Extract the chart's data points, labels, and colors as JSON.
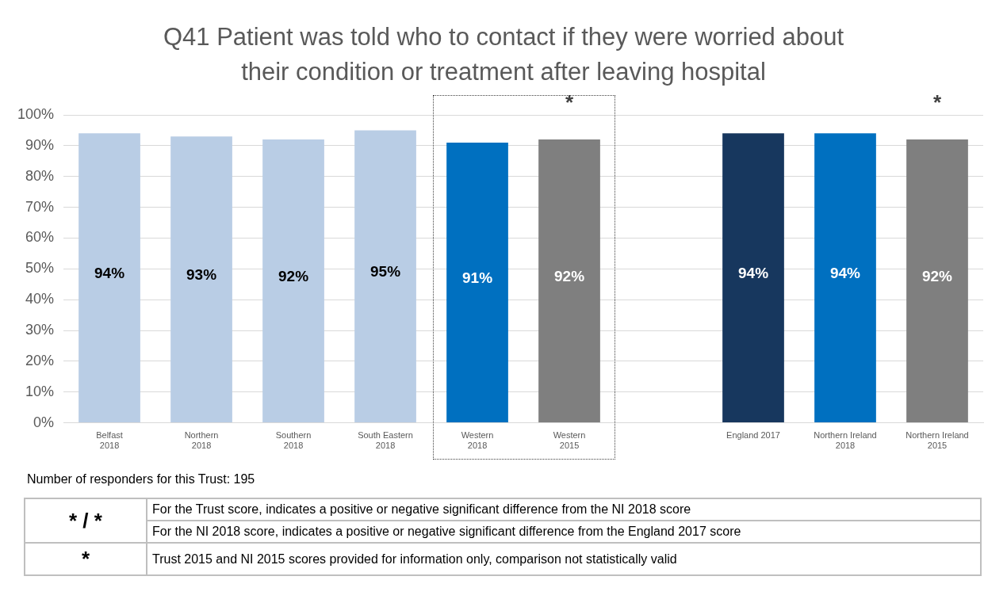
{
  "chart_data": {
    "type": "bar",
    "title": "Q41 Patient was told who to contact if they were worried about their condition or treatment after leaving hospital",
    "categories": [
      "Belfast\n2018",
      "Northern\n2018",
      "Southern\n2018",
      "South Eastern\n2018",
      "Western\n2018",
      "Western\n2015",
      null,
      "England 2017",
      "Northern Ireland\n2018",
      "Northern Ireland\n2015"
    ],
    "values": [
      94,
      93,
      92,
      95,
      91,
      92,
      null,
      94,
      94,
      92
    ],
    "colors": [
      "#b9cde5",
      "#b9cde5",
      "#b9cde5",
      "#b9cde5",
      "#0070c0",
      "#7f7f7f",
      "#ffffff",
      "#17375e",
      "#0070c0",
      "#7f7f7f"
    ],
    "value_labels": [
      "94%",
      "93%",
      "92%",
      "95%",
      "91%",
      "92%",
      null,
      "94%",
      "94%",
      "92%"
    ],
    "ylim": [
      0,
      100
    ],
    "yticks": [
      {
        "value": 0,
        "label": "0%"
      },
      {
        "value": 10,
        "label": "10%"
      },
      {
        "value": 20,
        "label": "20%"
      },
      {
        "value": 30,
        "label": "30%"
      },
      {
        "value": 40,
        "label": "40%"
      },
      {
        "value": 50,
        "label": "50%"
      },
      {
        "value": 60,
        "label": "60%"
      },
      {
        "value": 70,
        "label": "70%"
      },
      {
        "value": 80,
        "label": "80%"
      },
      {
        "value": 90,
        "label": "90%"
      },
      {
        "value": 100,
        "label": "100%"
      }
    ],
    "grid": "y",
    "annotations": [
      "*",
      "*",
      "Number of responders for this Trust: 195",
      "* / *",
      "For the Trust score, indicates a positive or negative significant difference from the NI 2018 score",
      "For the NI 2018 score, indicates a positive or negative significant difference from the England 2017 score",
      "*",
      "Trust 2015 and  NI 2015 scores provided for information only, comparison not statistically valid"
    ]
  }
}
